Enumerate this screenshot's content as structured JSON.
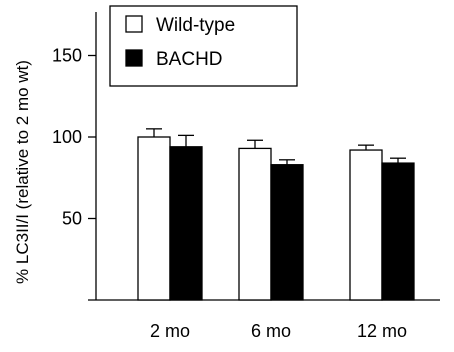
{
  "chart_data": {
    "type": "bar",
    "title": "",
    "xlabel": "",
    "ylabel": "% LC3II/I (relative to 2 mo wt)",
    "ylim": [
      0,
      175
    ],
    "yticks": [
      50,
      100,
      150
    ],
    "categories": [
      "2 mo",
      "6 mo",
      "12 mo"
    ],
    "series": [
      {
        "name": "Wild-type",
        "values": [
          100,
          93,
          92
        ],
        "errors": [
          5,
          5,
          3
        ],
        "color": "#ffffff"
      },
      {
        "name": "BACHD",
        "values": [
          94,
          83,
          84
        ],
        "errors": [
          7,
          3,
          3
        ],
        "color": "#000000"
      }
    ],
    "legend": "top-left",
    "grid": false
  }
}
